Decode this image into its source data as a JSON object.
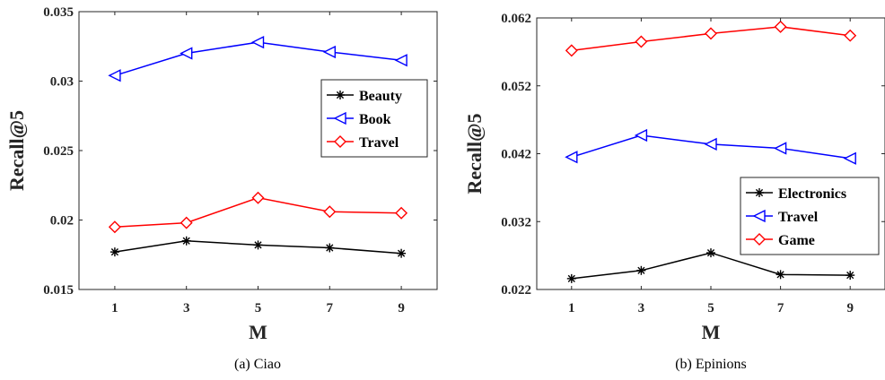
{
  "chart_data": [
    {
      "type": "line",
      "caption": "(a) Ciao",
      "xlabel": "M",
      "ylabel": "Recall@5",
      "x": [
        1,
        3,
        5,
        7,
        9
      ],
      "xticks": [
        "1",
        "3",
        "5",
        "7",
        "9"
      ],
      "xlim": [
        0,
        10
      ],
      "ylim": [
        0.015,
        0.035
      ],
      "yticks": [
        "0.015",
        "0.02",
        "0.025",
        "0.03",
        "0.035"
      ],
      "grid": false,
      "legend_position": "middle-right",
      "series": [
        {
          "name": "Beauty",
          "color": "#000000",
          "marker": "asterisk",
          "values": [
            0.0177,
            0.0185,
            0.0182,
            0.018,
            0.0176
          ]
        },
        {
          "name": "Book",
          "color": "#0000ff",
          "marker": "triangle-left",
          "values": [
            0.0304,
            0.032,
            0.0328,
            0.0321,
            0.0315
          ]
        },
        {
          "name": "Travel",
          "color": "#ff0000",
          "marker": "diamond",
          "values": [
            0.0195,
            0.0198,
            0.0216,
            0.0206,
            0.0205
          ]
        }
      ]
    },
    {
      "type": "line",
      "caption": "(b) Epinions",
      "xlabel": "M",
      "ylabel": "Recall@5",
      "x": [
        1,
        3,
        5,
        7,
        9
      ],
      "xticks": [
        "1",
        "3",
        "5",
        "7",
        "9"
      ],
      "xlim": [
        0,
        10
      ],
      "ylim": [
        0.022,
        0.062
      ],
      "yticks": [
        "0.022",
        "0.032",
        "0.042",
        "0.052",
        "0.062"
      ],
      "grid": false,
      "legend_position": "bottom-right",
      "series": [
        {
          "name": "Electronics",
          "color": "#000000",
          "marker": "asterisk",
          "values": [
            0.0236,
            0.0248,
            0.0274,
            0.0242,
            0.0241
          ]
        },
        {
          "name": "Travel",
          "color": "#0000ff",
          "marker": "triangle-left",
          "values": [
            0.0415,
            0.0447,
            0.0434,
            0.0428,
            0.0413
          ]
        },
        {
          "name": "Game",
          "color": "#ff0000",
          "marker": "diamond",
          "values": [
            0.0572,
            0.0585,
            0.0597,
            0.0607,
            0.0594
          ]
        }
      ]
    }
  ]
}
